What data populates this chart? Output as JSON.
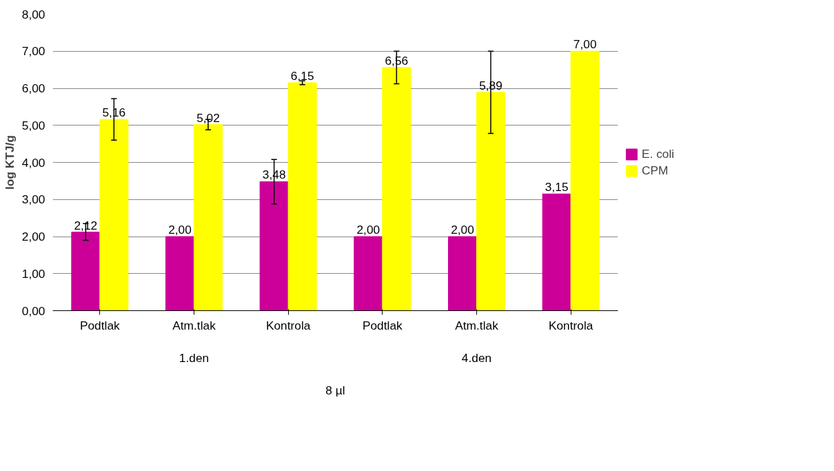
{
  "chart_data": {
    "type": "bar",
    "ylabel": "log KTJ/g",
    "categories": [
      "Podtlak",
      "Atm.tlak",
      "Kontrola",
      "Podtlak",
      "Atm.tlak",
      "Kontrola"
    ],
    "series": [
      {
        "name": "E. coli",
        "color": "#cc0099",
        "values": [
          2.12,
          2.0,
          3.48,
          2.0,
          2.0,
          3.15
        ],
        "errors": [
          [
            1.9,
            2.35
          ],
          null,
          [
            2.88,
            4.08
          ],
          null,
          null,
          null
        ],
        "value_labels": [
          "2,12",
          "2,00",
          "3,48",
          "2,00",
          "2,00",
          "3,15"
        ]
      },
      {
        "name": "CPM",
        "color": "#ffff00",
        "values": [
          5.16,
          5.02,
          6.15,
          6.56,
          5.89,
          7.0
        ],
        "errors": [
          [
            4.6,
            5.72
          ],
          [
            4.88,
            5.16
          ],
          [
            6.1,
            6.2
          ],
          [
            6.12,
            7.0
          ],
          [
            4.78,
            7.0
          ],
          null
        ],
        "value_labels": [
          "5,16",
          "5,02",
          "6,15",
          "6,56",
          "5,89",
          "7,00"
        ]
      }
    ],
    "annotations": [
      "1.den",
      "4.den",
      "8 µl"
    ],
    "ylim": [
      0,
      8
    ],
    "yticks": [
      {
        "value": 0,
        "label": "0,00"
      },
      {
        "value": 1,
        "label": "1,00"
      },
      {
        "value": 2,
        "label": "2,00"
      },
      {
        "value": 3,
        "label": "3,00"
      },
      {
        "value": 4,
        "label": "4,00"
      },
      {
        "value": 5,
        "label": "5,00"
      },
      {
        "value": 6,
        "label": "6,00"
      },
      {
        "value": 7,
        "label": "7,00"
      },
      {
        "value": 8,
        "label": "8,00"
      }
    ],
    "grid": "y",
    "legend": "right"
  }
}
